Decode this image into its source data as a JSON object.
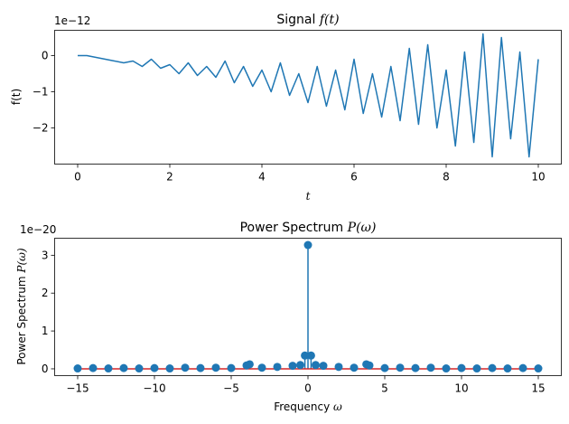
{
  "chart_data": [
    {
      "type": "line",
      "title_prefix": "Signal ",
      "title_symbol": "f(t)",
      "xlabel": "t",
      "ylabel": "f(t)",
      "offset_text": "1e−12",
      "xlim": [
        -0.5,
        10.5
      ],
      "ylim": [
        -3.0,
        0.7
      ],
      "xticks": [
        0,
        2,
        4,
        6,
        8,
        10
      ],
      "yticks": [
        0,
        -1,
        -2
      ],
      "xtick_labels": [
        "0",
        "2",
        "4",
        "6",
        "8",
        "10"
      ],
      "ytick_labels": [
        "0",
        "−1",
        "−2"
      ],
      "color": "#1f77b4",
      "series": [
        {
          "x": [
            0.0,
            0.2,
            0.4,
            0.6,
            0.8,
            1.0,
            1.2,
            1.4,
            1.6,
            1.8,
            2.0,
            2.2,
            2.4,
            2.6,
            2.8,
            3.0,
            3.2,
            3.4,
            3.6,
            3.8,
            4.0,
            4.2,
            4.4,
            4.6,
            4.8,
            5.0,
            5.2,
            5.4,
            5.6,
            5.8,
            6.0,
            6.2,
            6.4,
            6.6,
            6.8,
            7.0,
            7.2,
            7.4,
            7.6,
            7.8,
            8.0,
            8.2,
            8.4,
            8.6,
            8.8,
            9.0,
            9.2,
            9.4,
            9.6,
            9.8,
            10.0
          ],
          "y": [
            0.0,
            0.0,
            -0.05,
            -0.1,
            -0.15,
            -0.2,
            -0.15,
            -0.3,
            -0.1,
            -0.35,
            -0.25,
            -0.5,
            -0.2,
            -0.55,
            -0.3,
            -0.6,
            -0.15,
            -0.75,
            -0.3,
            -0.85,
            -0.4,
            -1.0,
            -0.2,
            -1.1,
            -0.5,
            -1.3,
            -0.3,
            -1.4,
            -0.4,
            -1.5,
            -0.1,
            -1.6,
            -0.5,
            -1.7,
            -0.3,
            -1.8,
            0.2,
            -1.9,
            0.3,
            -2.0,
            -0.4,
            -2.5,
            0.1,
            -2.4,
            0.6,
            -2.8,
            0.5,
            -2.3,
            0.1,
            -2.8,
            -0.1
          ]
        }
      ]
    },
    {
      "type": "stem",
      "title_prefix": "Power Spectrum ",
      "title_symbol": "P(ω)",
      "xlabel_prefix": "Frequency ",
      "xlabel_symbol": "ω",
      "ylabel_prefix": "Power Spectrum ",
      "ylabel_symbol": "P(ω)",
      "offset_text": "1e−20",
      "xlim": [
        -16.5,
        16.5
      ],
      "ylim": [
        -0.18,
        3.45
      ],
      "xticks": [
        -15,
        -10,
        -5,
        0,
        5,
        10,
        15
      ],
      "yticks": [
        0,
        1,
        2,
        3
      ],
      "xtick_labels": [
        "−15",
        "−10",
        "−5",
        "0",
        "5",
        "10",
        "15"
      ],
      "ytick_labels": [
        "0",
        "1",
        "2",
        "3"
      ],
      "color": "#1f77b4",
      "baseline_color": "#d62728",
      "x": [
        -15,
        -14,
        -13,
        -12,
        -11,
        -10,
        -9,
        -8,
        -7,
        -6,
        -5,
        -4,
        -3.8,
        -3,
        -2,
        -1,
        -0.5,
        -0.2,
        0,
        0.2,
        0.5,
        1,
        2,
        3,
        3.8,
        4,
        5,
        6,
        7,
        8,
        9,
        10,
        11,
        12,
        13,
        14,
        15
      ],
      "y": [
        0.01,
        0.02,
        0.01,
        0.02,
        0.01,
        0.02,
        0.01,
        0.03,
        0.02,
        0.03,
        0.02,
        0.09,
        0.12,
        0.03,
        0.05,
        0.08,
        0.1,
        0.35,
        3.27,
        0.35,
        0.1,
        0.08,
        0.05,
        0.03,
        0.12,
        0.09,
        0.02,
        0.03,
        0.02,
        0.03,
        0.01,
        0.02,
        0.01,
        0.02,
        0.01,
        0.02,
        0.01
      ]
    }
  ]
}
